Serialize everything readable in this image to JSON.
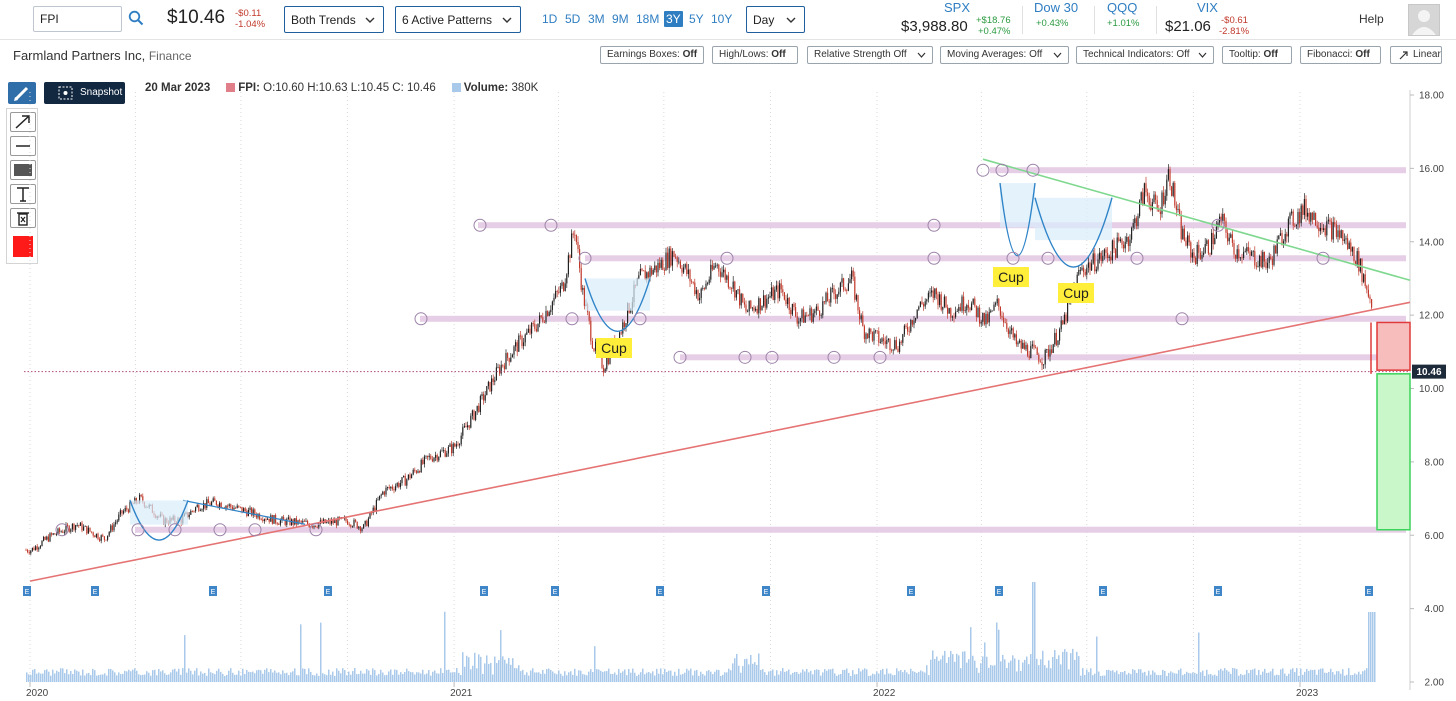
{
  "header": {
    "ticker_value": "FPI",
    "price": "$10.46",
    "change": "-$0.11",
    "change_pct": "-1.04%",
    "trend_select": "Both Trends",
    "pattern_select": "6 Active Patterns",
    "ranges": [
      "1D",
      "5D",
      "3M",
      "9M",
      "18M",
      "3Y",
      "5Y",
      "10Y"
    ],
    "active_range": "3Y",
    "interval_select": "Day",
    "help_label": "Help"
  },
  "indices": [
    {
      "name": "SPX",
      "value": "$3,988.80",
      "change": "+$18.76",
      "change_pct": "+0.47%"
    },
    {
      "name": "Dow 30",
      "value": "",
      "change": "",
      "change_pct": "+0.43%"
    },
    {
      "name": "QQQ",
      "value": "",
      "change": "",
      "change_pct": "+1.01%"
    },
    {
      "name": "VIX",
      "value": "$21.06",
      "change": "-$0.61",
      "change_pct": "-2.81%"
    }
  ],
  "company": {
    "name": "Farmland Partners Inc,",
    "sector": "Finance"
  },
  "toolbar": [
    {
      "label": "Earnings Boxes:",
      "state": "Off",
      "dropdown": false
    },
    {
      "label": "High/Lows:",
      "state": "Off",
      "dropdown": false
    },
    {
      "label": "Relative Strength Off",
      "state": "",
      "dropdown": true
    },
    {
      "label": "Moving Averages: Off",
      "state": "",
      "dropdown": true
    },
    {
      "label": "Technical Indicators: Off",
      "state": "",
      "dropdown": true
    },
    {
      "label": "Tooltip:",
      "state": "Off",
      "dropdown": false
    },
    {
      "label": "Fibonacci:",
      "state": "Off",
      "dropdown": false
    },
    {
      "label": "Linear",
      "state": "",
      "dropdown": false
    }
  ],
  "snapshot_label": "Snapshot",
  "info": {
    "date": "20 Mar 2023",
    "symbol": "FPI:",
    "ohlc": "O:10.60 H:10.63 L:10.45 C: 10.46",
    "volume_label": "Volume:",
    "volume_value": "380K"
  },
  "colors": {
    "accent": "#2f7ec2",
    "up": "#c0392b",
    "resistance_band": "#e6cfe6",
    "support_trend": "#e57373",
    "resistance_trend": "#7fd88f",
    "cup": "#2f84c8",
    "cup_label_bg": "#ffee3a",
    "volume": "#a9c9ea",
    "stop_box": "#f7bcbc",
    "target_box": "#c9f7c9"
  },
  "chart_data": {
    "type": "candlestick",
    "symbol": "FPI",
    "y_ticks": [
      "18.00",
      "16.00",
      "14.00",
      "12.00",
      "10.00",
      "8.00",
      "6.00",
      "4.00",
      "2.00"
    ],
    "ylim": [
      2,
      18
    ],
    "x_tick_labels": [
      "2020",
      "2021",
      "2022",
      "2023"
    ],
    "last_price_label": "10.46",
    "close_path": [
      [
        "2020-01-02",
        5.6
      ],
      [
        "2020-01-20",
        6.0
      ],
      [
        "2020-02-10",
        6.3
      ],
      [
        "2020-03-05",
        5.9
      ],
      [
        "2020-03-20",
        6.6
      ],
      [
        "2020-04-05",
        7.0
      ],
      [
        "2020-04-25",
        6.4
      ],
      [
        "2020-05-10",
        6.4
      ],
      [
        "2020-05-25",
        6.8
      ],
      [
        "2020-06-10",
        6.9
      ],
      [
        "2020-07-01",
        6.7
      ],
      [
        "2020-08-01",
        6.4
      ],
      [
        "2020-09-01",
        6.3
      ],
      [
        "2020-10-01",
        6.4
      ],
      [
        "2020-10-15",
        6.2
      ],
      [
        "2020-11-01",
        7.2
      ],
      [
        "2020-11-20",
        7.5
      ],
      [
        "2020-12-10",
        8.1
      ],
      [
        "2021-01-01",
        8.4
      ],
      [
        "2021-01-20",
        9.4
      ],
      [
        "2021-02-10",
        10.6
      ],
      [
        "2021-02-25",
        11.2
      ],
      [
        "2021-03-15",
        11.8
      ],
      [
        "2021-04-05",
        12.8
      ],
      [
        "2021-04-15",
        14.4
      ],
      [
        "2021-04-22",
        12.6
      ],
      [
        "2021-05-01",
        11.2
      ],
      [
        "2021-05-10",
        10.6
      ],
      [
        "2021-05-25",
        11.6
      ],
      [
        "2021-06-10",
        13.0
      ],
      [
        "2021-06-25",
        13.3
      ],
      [
        "2021-07-10",
        13.7
      ],
      [
        "2021-07-20",
        13.2
      ],
      [
        "2021-08-01",
        12.5
      ],
      [
        "2021-08-15",
        13.4
      ],
      [
        "2021-08-30",
        12.8
      ],
      [
        "2021-09-10",
        12.1
      ],
      [
        "2021-09-25",
        12.4
      ],
      [
        "2021-10-10",
        12.7
      ],
      [
        "2021-10-25",
        11.9
      ],
      [
        "2021-11-10",
        12.1
      ],
      [
        "2021-11-25",
        12.6
      ],
      [
        "2021-12-10",
        13.0
      ],
      [
        "2021-12-20",
        11.6
      ],
      [
        "2022-01-05",
        11.3
      ],
      [
        "2022-01-20",
        11.2
      ],
      [
        "2022-02-05",
        12.2
      ],
      [
        "2022-02-20",
        12.6
      ],
      [
        "2022-03-05",
        12.1
      ],
      [
        "2022-03-20",
        12.4
      ],
      [
        "2022-04-05",
        11.8
      ],
      [
        "2022-04-15",
        12.3
      ],
      [
        "2022-05-01",
        11.2
      ],
      [
        "2022-05-15",
        11.0
      ],
      [
        "2022-05-25",
        10.8
      ],
      [
        "2022-06-10",
        11.7
      ],
      [
        "2022-06-25",
        13.2
      ],
      [
        "2022-07-10",
        13.5
      ],
      [
        "2022-07-25",
        13.8
      ],
      [
        "2022-08-08",
        14.2
      ],
      [
        "2022-08-20",
        15.4
      ],
      [
        "2022-09-01",
        14.8
      ],
      [
        "2022-09-10",
        15.9
      ],
      [
        "2022-09-20",
        14.3
      ],
      [
        "2022-10-01",
        13.6
      ],
      [
        "2022-10-15",
        13.9
      ],
      [
        "2022-10-25",
        14.6
      ],
      [
        "2022-11-05",
        13.8
      ],
      [
        "2022-11-20",
        13.6
      ],
      [
        "2022-12-05",
        13.4
      ],
      [
        "2022-12-20",
        14.4
      ],
      [
        "2023-01-05",
        14.9
      ],
      [
        "2023-01-20",
        14.5
      ],
      [
        "2023-02-05",
        14.2
      ],
      [
        "2023-02-20",
        13.5
      ],
      [
        "2023-03-05",
        12.2
      ],
      [
        "2023-03-12",
        11.9
      ],
      [
        "2023-03-20",
        10.46
      ]
    ]
  }
}
